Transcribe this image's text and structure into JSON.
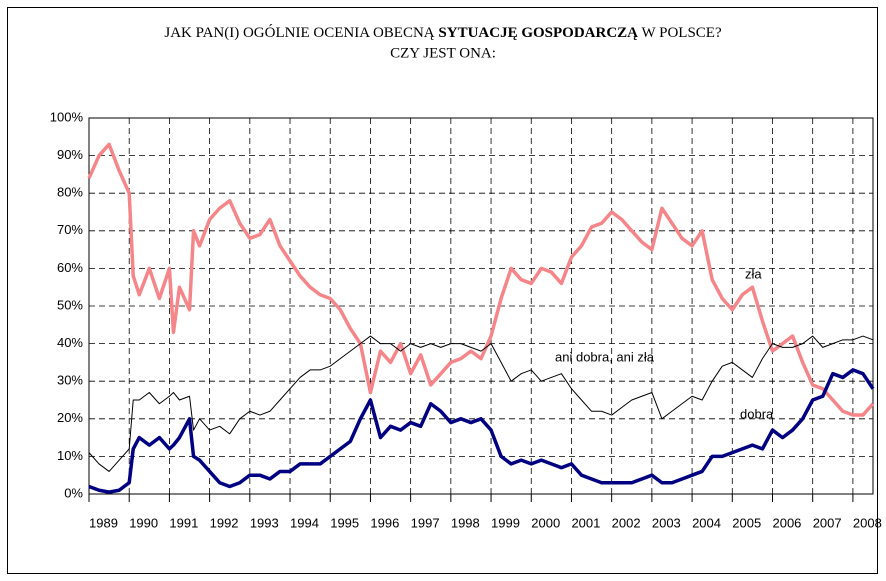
{
  "chart_data": {
    "type": "line",
    "title": [
      "JAK PAN(I) OGÓLNIE OCENIA OBECNĄ",
      "SYTUACJĘ GOSPODARCZĄ",
      "W POLSCE?",
      "CZY JEST ONA:"
    ],
    "x": [
      1989,
      1989.25,
      1989.5,
      1989.75,
      1990,
      1990.1,
      1990.25,
      1990.5,
      1990.75,
      1991,
      1991.1,
      1991.25,
      1991.5,
      1991.6,
      1991.75,
      1992,
      1992.25,
      1992.5,
      1992.75,
      1993,
      1993.25,
      1993.5,
      1993.75,
      1994,
      1994.25,
      1994.5,
      1994.75,
      1995,
      1995.25,
      1995.5,
      1995.75,
      1996,
      1996.25,
      1996.5,
      1996.75,
      1997,
      1997.25,
      1997.5,
      1997.75,
      1998,
      1998.25,
      1998.5,
      1998.75,
      1999,
      1999.25,
      1999.5,
      1999.75,
      2000,
      2000.25,
      2000.5,
      2000.75,
      2001,
      2001.25,
      2001.5,
      2001.75,
      2002,
      2002.25,
      2002.5,
      2002.75,
      2003,
      2003.25,
      2003.5,
      2003.75,
      2004,
      2004.25,
      2004.5,
      2004.75,
      2005,
      2005.25,
      2005.5,
      2005.75,
      2006,
      2006.25,
      2006.5,
      2006.75,
      2007,
      2007.25,
      2007.5,
      2007.75,
      2008,
      2008.25,
      2008.5
    ],
    "series": [
      {
        "name": "zła",
        "color": "#f4868a",
        "width": 3.5,
        "values": [
          84,
          90,
          93,
          86,
          80,
          58,
          53,
          60,
          52,
          60,
          43,
          55,
          49,
          70,
          66,
          73,
          76,
          78,
          72,
          68,
          69,
          73,
          66,
          62,
          58,
          55,
          53,
          52,
          49,
          44,
          40,
          27,
          38,
          35,
          40,
          32,
          37,
          29,
          32,
          35,
          36,
          38,
          36,
          42,
          52,
          60,
          57,
          56,
          60,
          59,
          56,
          63,
          66,
          71,
          72,
          75,
          73,
          70,
          67,
          65,
          76,
          72,
          68,
          66,
          70,
          57,
          52,
          49,
          53,
          55,
          46,
          38,
          40,
          42,
          35,
          29,
          28,
          25,
          22,
          21,
          21,
          24
        ]
      },
      {
        "name": "ani dobra, ani zła",
        "color": "#000000",
        "width": 1,
        "values": [
          11,
          8,
          6,
          9,
          12,
          25,
          25,
          27,
          24,
          26,
          27,
          25,
          26,
          17,
          20,
          17,
          18,
          16,
          20,
          22,
          21,
          22,
          25,
          28,
          31,
          33,
          33,
          34,
          36,
          38,
          40,
          42,
          40,
          40,
          38,
          40,
          39,
          40,
          39,
          40,
          40,
          39,
          38,
          40,
          35,
          30,
          32,
          33,
          30,
          31,
          32,
          28,
          25,
          22,
          22,
          21,
          23,
          25,
          26,
          27,
          20,
          22,
          24,
          26,
          25,
          30,
          34,
          35,
          33,
          31,
          36,
          40,
          39,
          39,
          40,
          42,
          39,
          40,
          41,
          41,
          42,
          41
        ]
      },
      {
        "name": "dobra",
        "color": "#000080",
        "width": 3.5,
        "values": [
          2,
          1,
          0.5,
          1,
          3,
          12,
          15,
          13,
          15,
          12,
          13,
          15,
          20,
          10,
          9,
          6,
          3,
          2,
          3,
          5,
          5,
          4,
          6,
          6,
          8,
          8,
          8,
          10,
          12,
          14,
          20,
          25,
          15,
          18,
          17,
          19,
          18,
          24,
          22,
          19,
          20,
          19,
          20,
          17,
          10,
          8,
          9,
          8,
          9,
          8,
          7,
          8,
          5,
          4,
          3,
          3,
          3,
          3,
          4,
          5,
          3,
          3,
          4,
          5,
          6,
          10,
          10,
          11,
          12,
          13,
          12,
          17,
          15,
          17,
          20,
          25,
          26,
          32,
          31,
          33,
          32,
          28
        ]
      }
    ],
    "xlim": [
      1989,
      2008.5
    ],
    "xticks": [
      1989,
      1990,
      1991,
      1992,
      1993,
      1994,
      1995,
      1996,
      1997,
      1998,
      1999,
      2000,
      2001,
      2002,
      2003,
      2004,
      2005,
      2006,
      2007,
      2008
    ],
    "ylim": [
      0,
      100
    ],
    "yticks": [
      {
        "value": 0,
        "label": "0%"
      },
      {
        "value": 10,
        "label": "10%"
      },
      {
        "value": 20,
        "label": "20%"
      },
      {
        "value": 30,
        "label": "30%"
      },
      {
        "value": 40,
        "label": "40%"
      },
      {
        "value": 50,
        "label": "50%"
      },
      {
        "value": 60,
        "label": "60%"
      },
      {
        "value": 70,
        "label": "70%"
      },
      {
        "value": 80,
        "label": "80%"
      },
      {
        "value": 90,
        "label": "90%"
      },
      {
        "value": 100,
        "label": "100%"
      }
    ],
    "grid": true
  }
}
